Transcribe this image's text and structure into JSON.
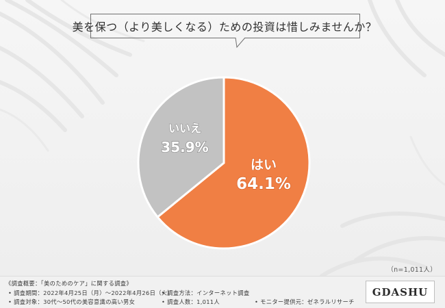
{
  "chart_data": {
    "type": "pie",
    "title": "美を保つ（より美しくなる）ための投資は惜しみませんか？",
    "slices": [
      {
        "label": "はい",
        "value": 64.1,
        "value_text": "64.1%",
        "color": "#f07f44"
      },
      {
        "label": "いいえ",
        "value": 35.9,
        "value_text": "35.9%",
        "color": "#c2c2c2"
      }
    ],
    "start": "12 o'clock",
    "direction": "clockwise",
    "sample_size": "（n=1,011人）"
  },
  "footer": {
    "survey_overview": "《調査概要：「美のためのケア」に関する調査》",
    "period": "• 調査期間：2022年4月25日（月）〜2022年4月26日（火）",
    "method": "• 調査方法：インターネット調査",
    "target": "• 調査対象：30代〜50代の美容意識の高い男女",
    "count": "• 調査人数：1,011人",
    "provider": "• モニター提供元：ゼネラルリサーチ"
  },
  "brand": {
    "logo_text": "GDASHU"
  },
  "colors": {
    "yes": "#f07f44",
    "no": "#c2c2c2",
    "background": "#f3f3f3"
  }
}
